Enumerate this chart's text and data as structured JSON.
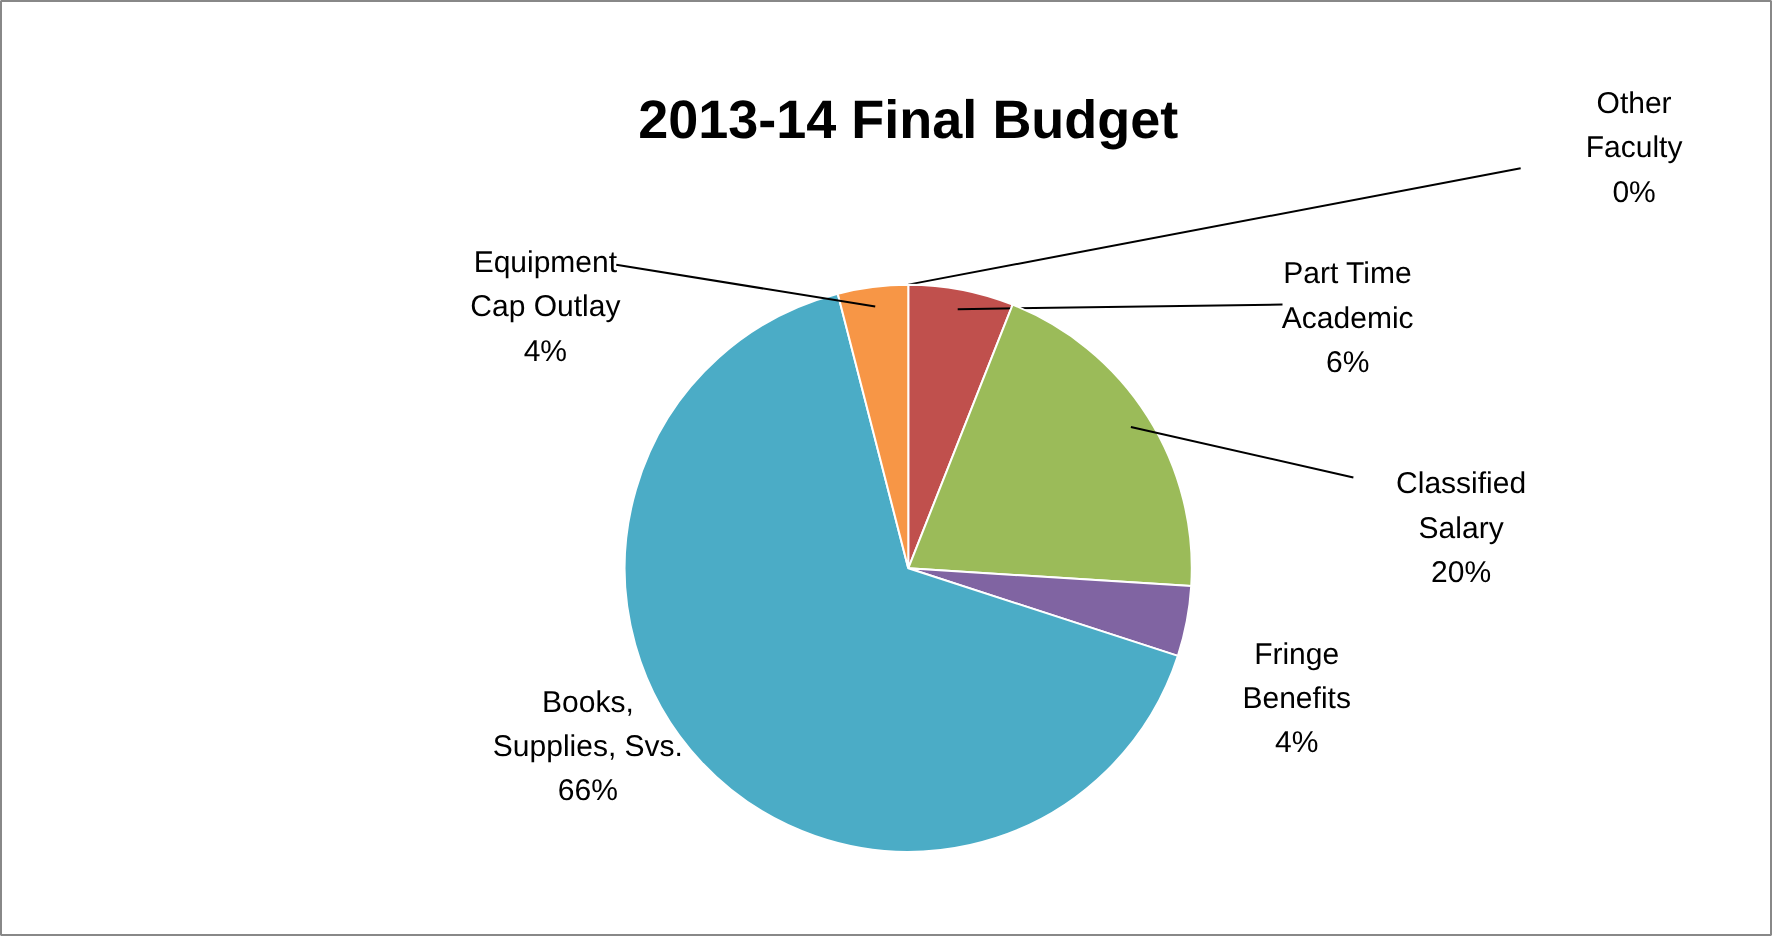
{
  "chart_data": {
    "type": "pie",
    "title": "2013-14 Final Budget",
    "categories": [
      "Other Faculty",
      "Part Time Academic",
      "Classified Salary",
      "Fringe Benefits",
      "Books, Supplies, Svs.",
      "Equipment Cap Outlay"
    ],
    "values": [
      0,
      6,
      20,
      4,
      66,
      4
    ],
    "value_labels": [
      "0%",
      "6%",
      "20%",
      "4%",
      "66%",
      "4%"
    ],
    "colors": [
      "#4f81bd",
      "#c0504d",
      "#9bbb59",
      "#8064a2",
      "#4bacc6",
      "#f79646"
    ]
  }
}
